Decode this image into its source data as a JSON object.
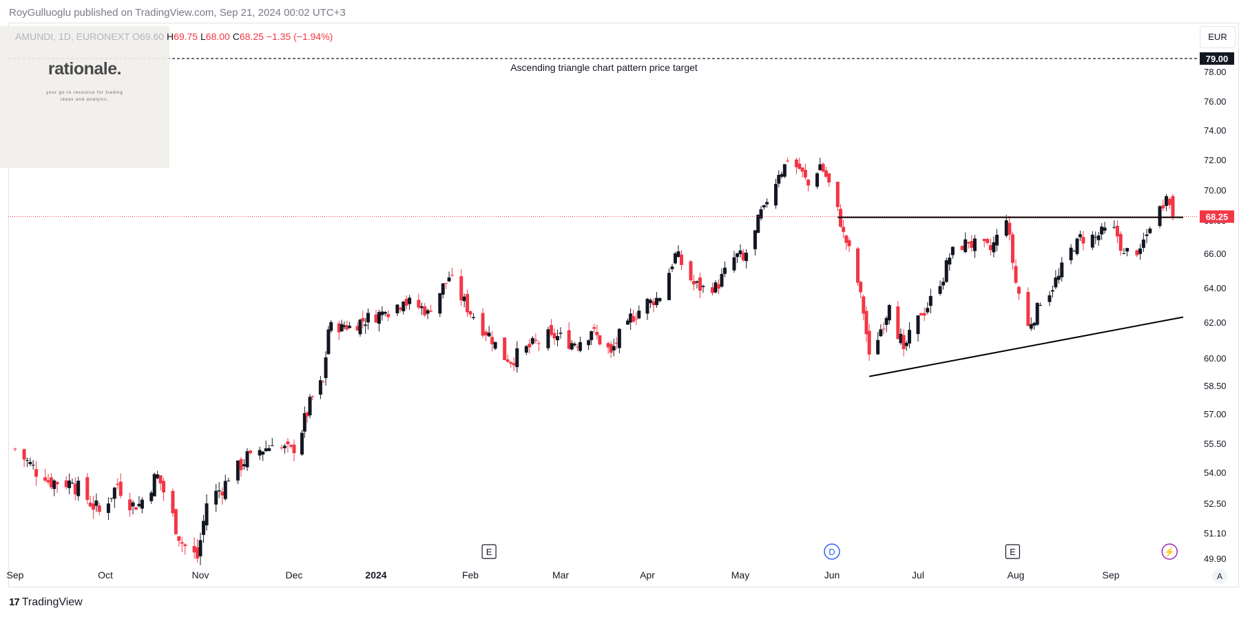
{
  "header": {
    "published": "RoyGulluoglu published on TradingView.com, Sep 21, 2024 00:02 UTC+3",
    "symbol": "AMUNDI, 1D, EURONEXT",
    "open_label": "O",
    "open_value": "69.60",
    "high_label": "H",
    "high_value": "69.75",
    "low_label": "L",
    "low_value": "68.00",
    "close_label": "C",
    "close_value": "68.25",
    "change": "−1.35 (−1.94%)"
  },
  "watermark": {
    "title": "rationale.",
    "tagline": "your go-to resource for trading ideas and analysis."
  },
  "toolbar": {
    "currency": "EUR",
    "auto_scale": "A"
  },
  "footer": {
    "brand": "TradingView",
    "brand_mark": "17"
  },
  "colors": {
    "up": "#131722",
    "down": "#f23645",
    "grid": "#ffffff",
    "line": "#000000",
    "price_line": "#f23645"
  },
  "chart_data": {
    "type": "candlestick",
    "ylim": [
      49.9,
      79.5
    ],
    "y_ticks": [
      "78.00",
      "76.00",
      "74.00",
      "72.00",
      "70.00",
      "68.00",
      "66.00",
      "64.00",
      "62.00",
      "60.00",
      "58.50",
      "57.00",
      "55.50",
      "54.00",
      "52.50",
      "51.10",
      "49.90"
    ],
    "x_ticks": [
      {
        "label": "Sep",
        "date": "2023-09-01",
        "bold": false
      },
      {
        "label": "Oct",
        "date": "2023-10-01",
        "bold": false
      },
      {
        "label": "Nov",
        "date": "2023-11-01",
        "bold": false
      },
      {
        "label": "Dec",
        "date": "2023-12-01",
        "bold": false
      },
      {
        "label": "2024",
        "date": "2024-01-01",
        "bold": true
      },
      {
        "label": "Feb",
        "date": "2024-02-01",
        "bold": false
      },
      {
        "label": "Mar",
        "date": "2024-03-01",
        "bold": false
      },
      {
        "label": "Apr",
        "date": "2024-04-01",
        "bold": false
      },
      {
        "label": "May",
        "date": "2024-05-01",
        "bold": false
      },
      {
        "label": "Jun",
        "date": "2024-06-01",
        "bold": false
      },
      {
        "label": "Jul",
        "date": "2024-07-01",
        "bold": false
      },
      {
        "label": "Aug",
        "date": "2024-08-01",
        "bold": false
      },
      {
        "label": "Sep",
        "date": "2024-09-01",
        "bold": false
      }
    ],
    "key_points": [
      {
        "date": "2023-09-01",
        "close": 55.2
      },
      {
        "date": "2023-09-11",
        "close": 53.6
      },
      {
        "date": "2023-09-20",
        "close": 53.5
      },
      {
        "date": "2023-09-29",
        "close": 52.1
      },
      {
        "date": "2023-10-05",
        "close": 53.4
      },
      {
        "date": "2023-10-11",
        "close": 52.2
      },
      {
        "date": "2023-10-18",
        "close": 53.9
      },
      {
        "date": "2023-10-26",
        "close": 50.6
      },
      {
        "date": "2023-10-31",
        "close": 49.9
      },
      {
        "date": "2023-11-03",
        "close": 52.5
      },
      {
        "date": "2023-11-10",
        "close": 53.6
      },
      {
        "date": "2023-11-17",
        "close": 55.0
      },
      {
        "date": "2023-11-24",
        "close": 55.4
      },
      {
        "date": "2023-12-01",
        "close": 55.0
      },
      {
        "date": "2023-12-08",
        "close": 57.9
      },
      {
        "date": "2023-12-12",
        "close": 58.7
      },
      {
        "date": "2023-12-14",
        "close": 61.6
      },
      {
        "date": "2023-12-19",
        "close": 61.9
      },
      {
        "date": "2023-12-22",
        "close": 61.8
      },
      {
        "date": "2024-01-04",
        "close": 62.6
      },
      {
        "date": "2024-01-10",
        "close": 63.2
      },
      {
        "date": "2024-01-18",
        "close": 62.7
      },
      {
        "date": "2024-01-25",
        "close": 64.6
      },
      {
        "date": "2024-02-02",
        "close": 62.3
      },
      {
        "date": "2024-02-09",
        "close": 60.9
      },
      {
        "date": "2024-02-13",
        "close": 59.8
      },
      {
        "date": "2024-02-20",
        "close": 60.6
      },
      {
        "date": "2024-02-27",
        "close": 61.3
      },
      {
        "date": "2024-03-06",
        "close": 60.8
      },
      {
        "date": "2024-03-12",
        "close": 61.5
      },
      {
        "date": "2024-03-19",
        "close": 60.3
      },
      {
        "date": "2024-03-25",
        "close": 62.1
      },
      {
        "date": "2024-04-02",
        "close": 63.3
      },
      {
        "date": "2024-04-05",
        "close": 63.4
      },
      {
        "date": "2024-04-10",
        "close": 66.0
      },
      {
        "date": "2024-04-16",
        "close": 64.2
      },
      {
        "date": "2024-04-22",
        "close": 63.7
      },
      {
        "date": "2024-04-30",
        "close": 66.0
      },
      {
        "date": "2024-05-02",
        "close": 65.6
      },
      {
        "date": "2024-05-06",
        "close": 67.4
      },
      {
        "date": "2024-05-09",
        "close": 69.0
      },
      {
        "date": "2024-05-14",
        "close": 71.0
      },
      {
        "date": "2024-05-17",
        "close": 71.9
      },
      {
        "date": "2024-05-21",
        "close": 71.4
      },
      {
        "date": "2024-05-24",
        "close": 70.3
      },
      {
        "date": "2024-05-28",
        "close": 71.7
      },
      {
        "date": "2024-05-31",
        "close": 70.5
      },
      {
        "date": "2024-06-05",
        "close": 67.3
      },
      {
        "date": "2024-06-10",
        "close": 64.3
      },
      {
        "date": "2024-06-12",
        "close": 62.5
      },
      {
        "date": "2024-06-14",
        "close": 60.2
      },
      {
        "date": "2024-06-18",
        "close": 61.6
      },
      {
        "date": "2024-06-21",
        "close": 63.0
      },
      {
        "date": "2024-06-26",
        "close": 60.5
      },
      {
        "date": "2024-07-02",
        "close": 62.4
      },
      {
        "date": "2024-07-08",
        "close": 64.1
      },
      {
        "date": "2024-07-12",
        "close": 66.4
      },
      {
        "date": "2024-07-17",
        "close": 66.6
      },
      {
        "date": "2024-07-24",
        "close": 66.2
      },
      {
        "date": "2024-07-29",
        "close": 68.0
      },
      {
        "date": "2024-08-01",
        "close": 64.3
      },
      {
        "date": "2024-08-05",
        "close": 61.8
      },
      {
        "date": "2024-08-09",
        "close": 63.0
      },
      {
        "date": "2024-08-15",
        "close": 64.7
      },
      {
        "date": "2024-08-21",
        "close": 66.9
      },
      {
        "date": "2024-08-27",
        "close": 67.0
      },
      {
        "date": "2024-09-02",
        "close": 67.6
      },
      {
        "date": "2024-09-05",
        "close": 66.0
      },
      {
        "date": "2024-09-10",
        "close": 66.3
      },
      {
        "date": "2024-09-13",
        "close": 67.5
      },
      {
        "date": "2024-09-18",
        "close": 69.6
      },
      {
        "date": "2024-09-20",
        "close": 68.25
      }
    ],
    "last_price": "68.25",
    "resistance": {
      "start_date": "2024-06-03",
      "end_date": "2024-09-20",
      "value": 68.2
    },
    "support": {
      "start": {
        "date": "2024-06-14",
        "value": 59.0
      },
      "end": {
        "date": "2024-09-20",
        "value": 62.3
      }
    },
    "target": {
      "value": 79.0,
      "label": "79.00",
      "annotation": "Ascending triangle chart pattern price target"
    },
    "events": [
      {
        "type": "earnings",
        "label": "E",
        "date": "2024-02-07"
      },
      {
        "type": "dividend",
        "label": "D",
        "date": "2024-06-01"
      },
      {
        "type": "earnings",
        "label": "E",
        "date": "2024-07-31"
      },
      {
        "type": "split",
        "label": "⚡",
        "date": "2024-09-19"
      }
    ]
  }
}
